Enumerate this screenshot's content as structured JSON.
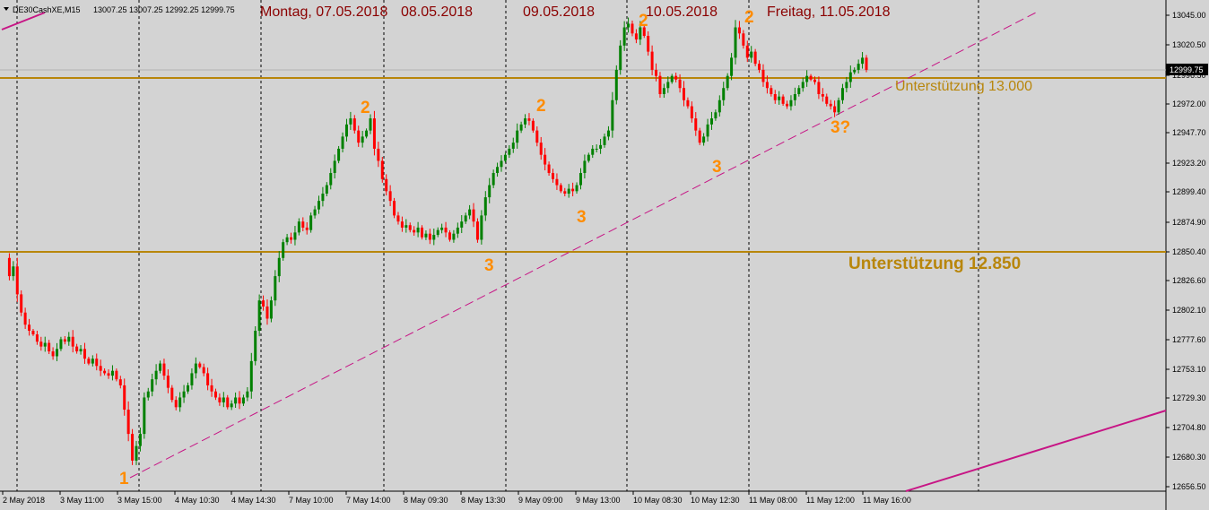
{
  "chart_data": {
    "type": "candlestick",
    "symbol": "DE30CashXE,M15",
    "ohlc_header": "13007.25 13007.25 12992.25 12999.75",
    "current_price_label": "12999.75",
    "colors": {
      "background": "#d3d3d3",
      "bull": "#008000",
      "bear": "#ff0000",
      "support": "#b8860b",
      "trendline": "#c71585",
      "wave_labels": "#ff8c00",
      "date_headers": "#8b0000"
    },
    "y_ticks": [
      "13045.00",
      "13020.50",
      "12996.50",
      "12972.00",
      "12947.70",
      "12923.20",
      "12899.40",
      "12874.90",
      "12850.40",
      "12826.60",
      "12802.10",
      "12777.60",
      "12753.10",
      "12729.30",
      "12704.80",
      "12680.30",
      "12656.50"
    ],
    "ylim": [
      12656.5,
      13045.0
    ],
    "x_ticks": [
      "2 May 2018",
      "3 May 11:00",
      "3 May 15:00",
      "4 May 10:30",
      "4 May 14:30",
      "7 May 10:00",
      "7 May 14:00",
      "8 May 09:30",
      "8 May 13:30",
      "9 May 09:00",
      "9 May 13:00",
      "10 May 08:30",
      "10 May 12:30",
      "11 May 08:00",
      "11 May 12:00",
      "11 May 16:00"
    ],
    "day_headers": [
      "Montag, 07.05.2018",
      "08.05.2018",
      "09.05.2018",
      "10.05.2018",
      "Freitag, 11.05.2018"
    ],
    "support_levels": [
      {
        "price": 13000.0,
        "label": "Unterstützung 13.000"
      },
      {
        "price": 12850.0,
        "label": "Unterstützung 12.850"
      }
    ],
    "wave_labels": [
      "1",
      "2",
      "3",
      "2",
      "3",
      "2",
      "3",
      "2",
      "3?"
    ],
    "series": [
      {
        "name": "",
        "prices": [
          12845,
          12830,
          12838,
          12815,
          12800,
          12790,
          12785,
          12782,
          12776,
          12772,
          12775,
          12768,
          12764,
          12770,
          12778,
          12776,
          12780,
          12772,
          12768,
          12770,
          12762,
          12758,
          12762,
          12756,
          12752,
          12750,
          12748,
          12752,
          12745,
          12740,
          12720,
          12700,
          12678,
          12690,
          12700,
          12730,
          12735,
          12745,
          12752,
          12758,
          12748,
          12738,
          12728,
          12722,
          12730,
          12735,
          12740,
          12750,
          12758,
          12755,
          12750,
          12740,
          12735,
          12730,
          12726,
          12730,
          12722,
          12725,
          12730,
          12725,
          12730,
          12735,
          12760,
          12785,
          12810,
          12805,
          12795,
          12810,
          12830,
          12845,
          12858,
          12862,
          12860,
          12866,
          12875,
          12870,
          12868,
          12880,
          12885,
          12892,
          12898,
          12905,
          12915,
          12925,
          12935,
          12945,
          12955,
          12960,
          12950,
          12940,
          12945,
          12950,
          12960,
          12935,
          12925,
          12910,
          12900,
          12892,
          12880,
          12875,
          12870,
          12872,
          12868,
          12866,
          12870,
          12862,
          12865,
          12860,
          12864,
          12868,
          12870,
          12866,
          12860,
          12865,
          12870,
          12875,
          12880,
          12885,
          12875,
          12860,
          12880,
          12895,
          12905,
          12915,
          12920,
          12925,
          12930,
          12935,
          12940,
          12950,
          12955,
          12960,
          12958,
          12950,
          12940,
          12930,
          12922,
          12915,
          12910,
          12905,
          12900,
          12898,
          12902,
          12900,
          12905,
          12915,
          12925,
          12930,
          12935,
          12935,
          12938,
          12945,
          12950,
          12975,
          13000,
          13020,
          13035,
          13038,
          13030,
          13025,
          13035,
          13028,
          13015,
          13000,
          12995,
          12980,
          12985,
          12990,
          12995,
          12992,
          12985,
          12975,
          12970,
          12960,
          12950,
          12940,
          12945,
          12955,
          12960,
          12965,
          12975,
          12985,
          12995,
          13010,
          13035,
          13030,
          13020,
          13010,
          13015,
          13005,
          13000,
          12990,
          12985,
          12980,
          12975,
          12978,
          12972,
          12970,
          12975,
          12980,
          12985,
          12990,
          12995,
          12992,
          12990,
          12980,
          12978,
          12972,
          12970,
          12965,
          12975,
          12985,
          12990,
          12998,
          13000,
          13005,
          13010,
          13000
        ]
      }
    ]
  }
}
